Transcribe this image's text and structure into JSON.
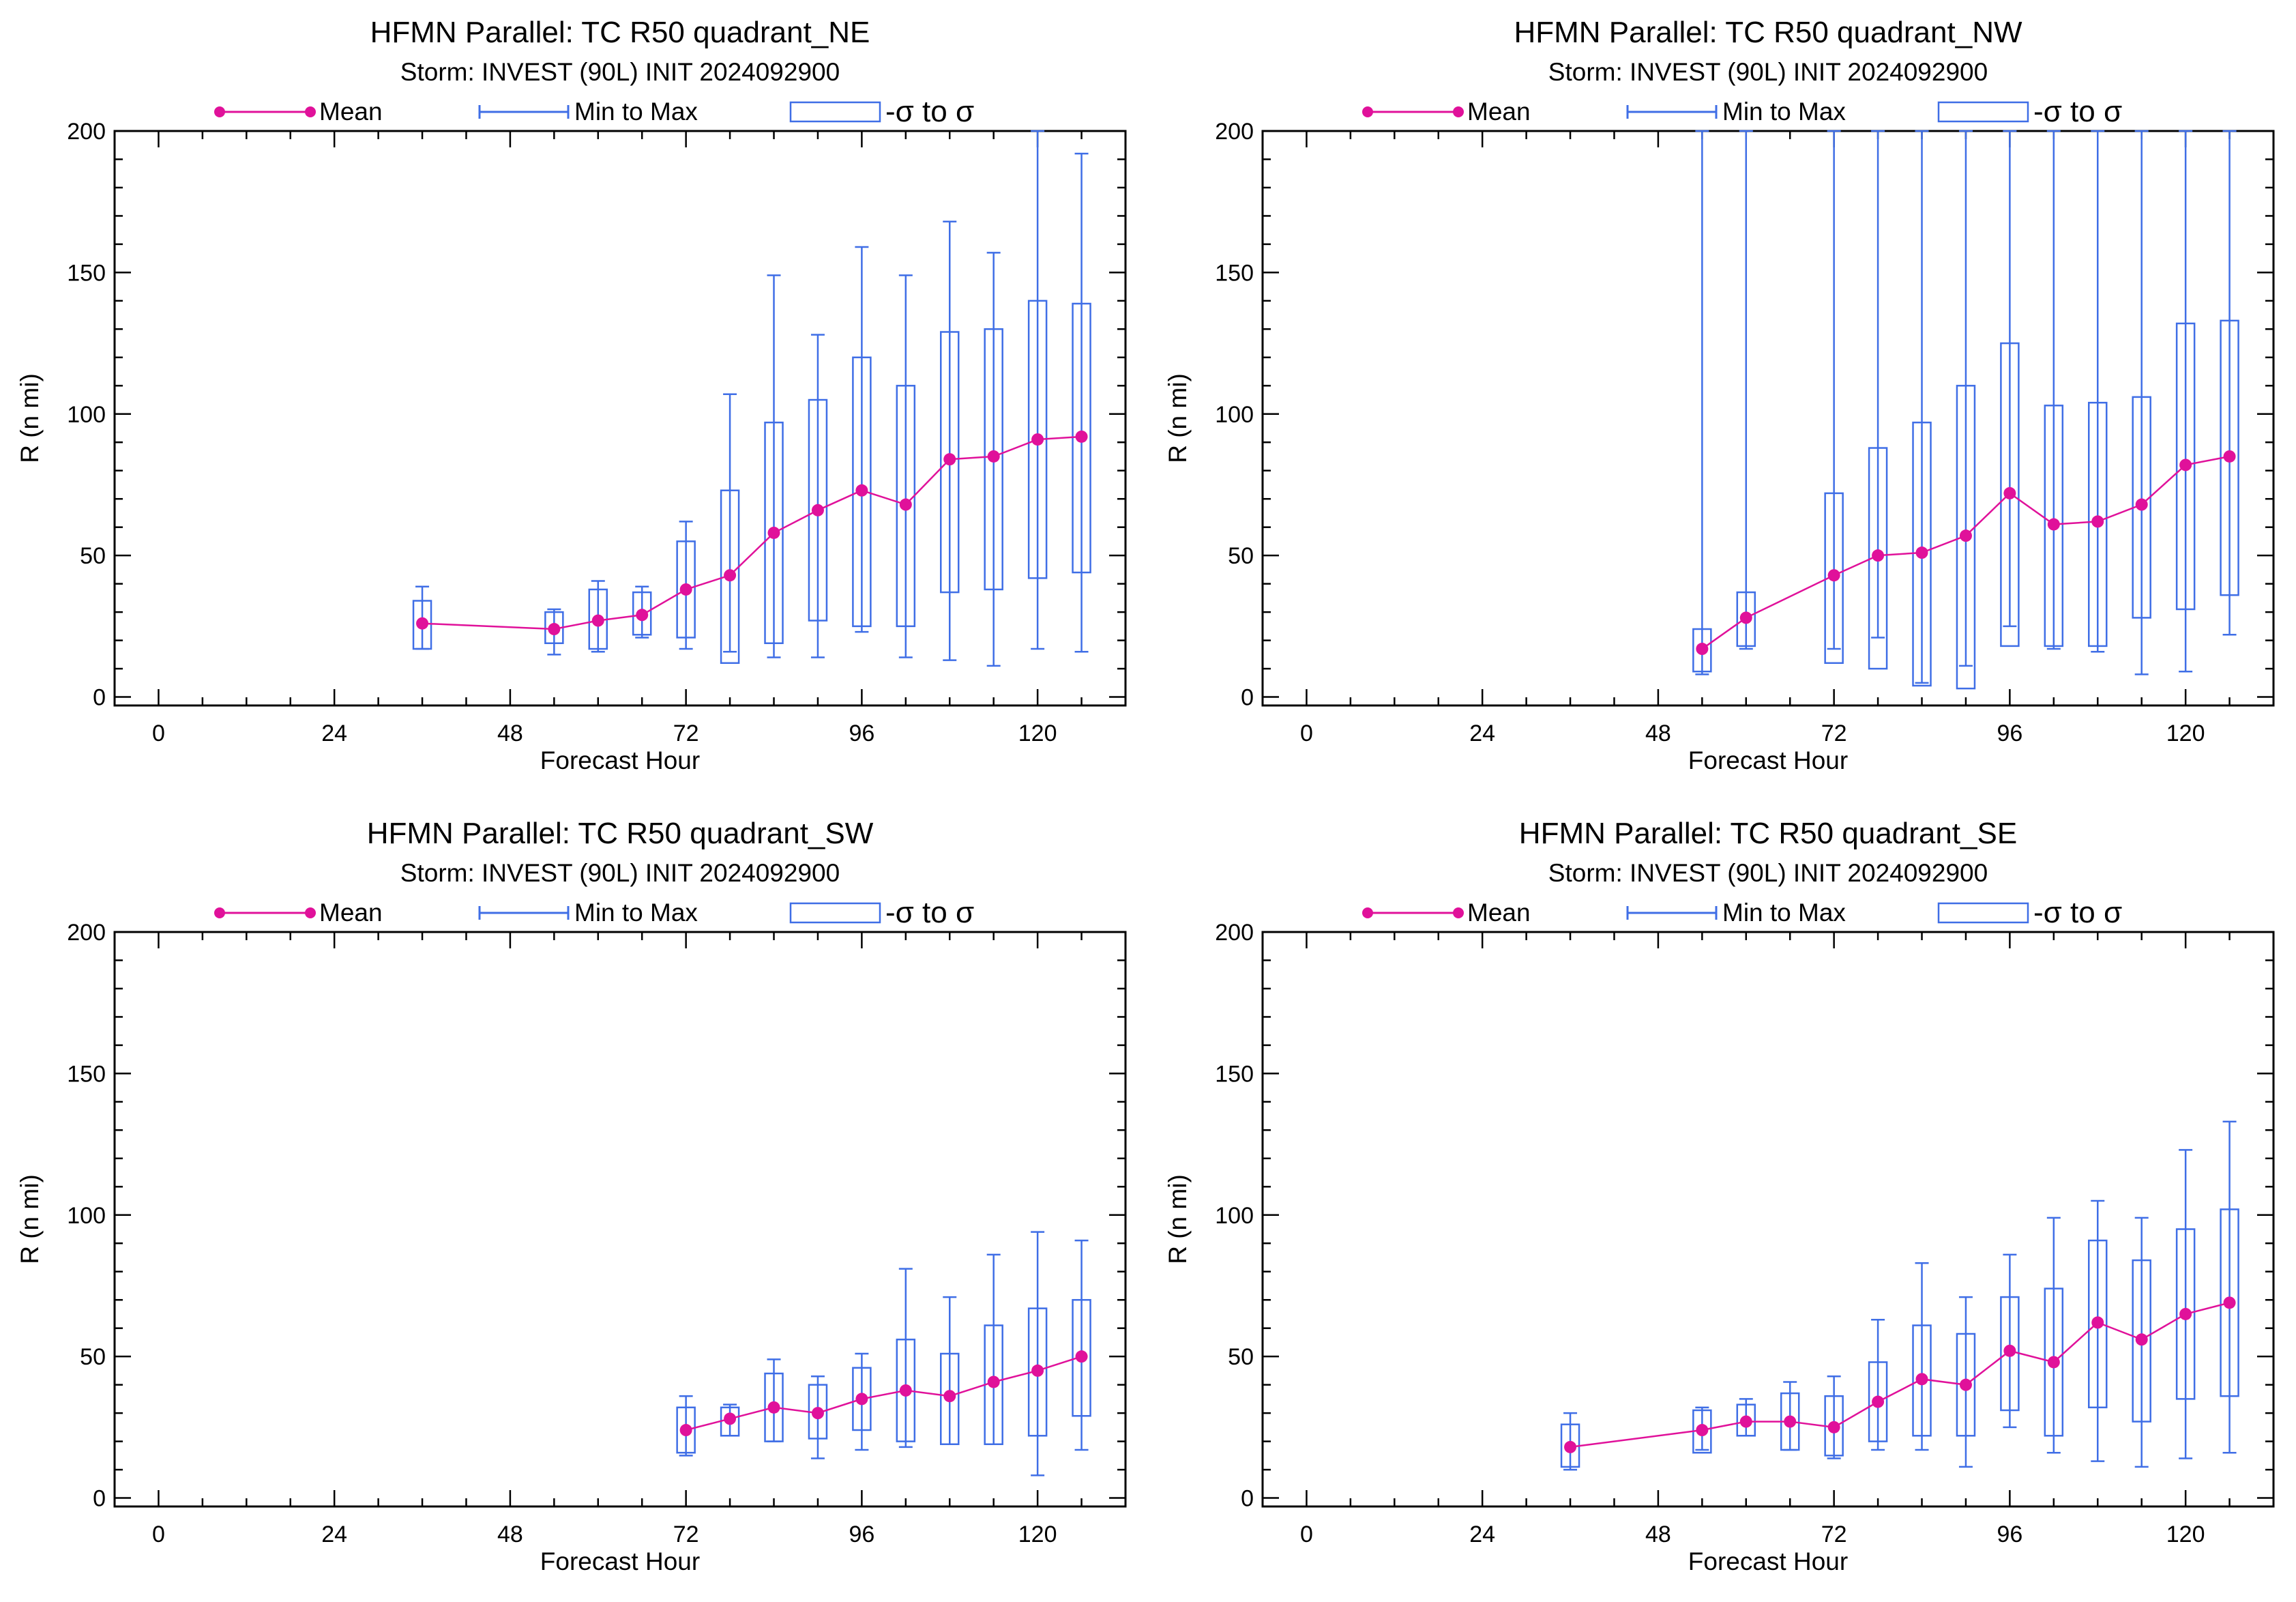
{
  "legend": {
    "mean": "Mean",
    "minmax": "Min to Max",
    "sigma": "-σ to σ"
  },
  "colors": {
    "mean": "#e0119a",
    "boxes": "#3f6ee6",
    "axes": "#000000"
  },
  "panels": [
    {
      "title": "HFMN Parallel: TC  R50 quadrant_NE",
      "subtitle": "Storm: INVEST (90L) INIT 2024092900",
      "xlabel": "Forecast Hour",
      "ylabel": "R (n mi)"
    },
    {
      "title": "HFMN Parallel: TC  R50 quadrant_NW",
      "subtitle": "Storm: INVEST (90L) INIT 2024092900",
      "xlabel": "Forecast Hour",
      "ylabel": "R (n mi)"
    },
    {
      "title": "HFMN Parallel: TC  R50 quadrant_SW",
      "subtitle": "Storm: INVEST (90L) INIT 2024092900",
      "xlabel": "Forecast Hour",
      "ylabel": "R (n mi)"
    },
    {
      "title": "HFMN Parallel: TC  R50 quadrant_SE",
      "subtitle": "Storm: INVEST (90L) INIT 2024092900",
      "xlabel": "Forecast Hour",
      "ylabel": "R (n mi)"
    }
  ],
  "chart_data": [
    {
      "type": "box",
      "title": "HFMN Parallel: TC  R50 quadrant_NE",
      "subtitle": "Storm: INVEST (90L) INIT 2024092900",
      "xlabel": "Forecast Hour",
      "ylabel": "R (n mi)",
      "xlim": [
        -6,
        132
      ],
      "ylim": [
        -3,
        200
      ],
      "xticks": [
        0,
        24,
        48,
        72,
        96,
        120
      ],
      "yticks": [
        0,
        50,
        100,
        150,
        200
      ],
      "series": [
        {
          "name": "Mean",
          "x": [
            36,
            54,
            60,
            66,
            72,
            78,
            84,
            90,
            96,
            102,
            108,
            114,
            120,
            126
          ],
          "values": [
            26,
            24,
            27,
            29,
            38,
            43,
            58,
            66,
            73,
            68,
            84,
            85,
            91,
            92
          ]
        },
        {
          "name": "Min to Max",
          "x": [
            36,
            54,
            60,
            66,
            72,
            78,
            84,
            90,
            96,
            102,
            108,
            114,
            120,
            126
          ],
          "low": [
            17,
            15,
            16,
            21,
            17,
            16,
            14,
            14,
            23,
            14,
            13,
            11,
            17,
            16
          ],
          "high": [
            39,
            31,
            41,
            39,
            62,
            107,
            149,
            128,
            159,
            149,
            168,
            157,
            200,
            192
          ]
        },
        {
          "name": "-σ to σ",
          "x": [
            36,
            54,
            60,
            66,
            72,
            78,
            84,
            90,
            96,
            102,
            108,
            114,
            120,
            126
          ],
          "low": [
            17,
            19,
            17,
            22,
            21,
            12,
            19,
            27,
            25,
            25,
            37,
            38,
            42,
            44
          ],
          "high": [
            34,
            30,
            38,
            37,
            55,
            73,
            97,
            105,
            120,
            110,
            129,
            130,
            140,
            139
          ]
        }
      ]
    },
    {
      "type": "box",
      "title": "HFMN Parallel: TC  R50 quadrant_NW",
      "subtitle": "Storm: INVEST (90L) INIT 2024092900",
      "xlabel": "Forecast Hour",
      "ylabel": "R (n mi)",
      "xlim": [
        -6,
        132
      ],
      "ylim": [
        -3,
        200
      ],
      "xticks": [
        0,
        24,
        48,
        72,
        96,
        120
      ],
      "yticks": [
        0,
        50,
        100,
        150,
        200
      ],
      "series": [
        {
          "name": "Mean",
          "x": [
            54,
            60,
            72,
            78,
            84,
            90,
            96,
            102,
            108,
            114,
            120,
            126
          ],
          "values": [
            17,
            28,
            43,
            50,
            51,
            57,
            72,
            61,
            62,
            68,
            82,
            85
          ]
        },
        {
          "name": "Min to Max",
          "x": [
            54,
            60,
            72,
            78,
            84,
            90,
            96,
            102,
            108,
            114,
            120,
            126
          ],
          "low": [
            8,
            17,
            17,
            21,
            5,
            11,
            25,
            17,
            16,
            8,
            9,
            22
          ]
        },
        {
          "name": "-σ to σ",
          "x": [
            54,
            60,
            72,
            78,
            84,
            90,
            96,
            102,
            108,
            114,
            120,
            126
          ],
          "low": [
            9,
            18,
            12,
            10,
            4,
            3,
            18,
            18,
            18,
            28,
            31,
            36
          ],
          "high": [
            24,
            37,
            72,
            88,
            97,
            110,
            125,
            103,
            104,
            106,
            132,
            133
          ]
        }
      ]
    },
    {
      "type": "box",
      "title": "HFMN Parallel: TC  R50 quadrant_SW",
      "subtitle": "Storm: INVEST (90L) INIT 2024092900",
      "xlabel": "Forecast Hour",
      "ylabel": "R (n mi)",
      "xlim": [
        -6,
        132
      ],
      "ylim": [
        -3,
        200
      ],
      "xticks": [
        0,
        24,
        48,
        72,
        96,
        120
      ],
      "yticks": [
        0,
        50,
        100,
        150,
        200
      ],
      "series": [
        {
          "name": "Mean",
          "x": [
            72,
            78,
            84,
            90,
            96,
            102,
            108,
            114,
            120,
            126
          ],
          "values": [
            24,
            28,
            32,
            30,
            35,
            38,
            36,
            41,
            45,
            50
          ]
        },
        {
          "name": "Min to Max",
          "x": [
            72,
            78,
            84,
            90,
            96,
            102,
            108,
            114,
            120,
            126
          ],
          "low": [
            15,
            22,
            20,
            14,
            17,
            18,
            19,
            19,
            8,
            17
          ],
          "high": [
            36,
            33,
            49,
            43,
            51,
            81,
            71,
            86,
            94,
            91
          ]
        },
        {
          "name": "-σ to σ",
          "x": [
            72,
            78,
            84,
            90,
            96,
            102,
            108,
            114,
            120,
            126
          ],
          "low": [
            16,
            22,
            20,
            21,
            24,
            20,
            19,
            19,
            22,
            29
          ],
          "high": [
            32,
            32,
            44,
            40,
            46,
            56,
            51,
            61,
            67,
            70
          ]
        }
      ]
    },
    {
      "type": "box",
      "title": "HFMN Parallel: TC  R50 quadrant_SE",
      "subtitle": "Storm: INVEST (90L) INIT 2024092900",
      "xlabel": "Forecast Hour",
      "ylabel": "R (n mi)",
      "xlim": [
        -6,
        132
      ],
      "ylim": [
        -3,
        200
      ],
      "xticks": [
        0,
        24,
        48,
        72,
        96,
        120
      ],
      "yticks": [
        0,
        50,
        100,
        150,
        200
      ],
      "series": [
        {
          "name": "Mean",
          "x": [
            36,
            54,
            60,
            66,
            72,
            78,
            84,
            90,
            96,
            102,
            108,
            114,
            120,
            126
          ],
          "values": [
            18,
            24,
            27,
            27,
            25,
            34,
            42,
            40,
            52,
            48,
            62,
            56,
            65,
            69
          ]
        },
        {
          "name": "Min to Max",
          "x": [
            36,
            54,
            60,
            66,
            72,
            78,
            84,
            90,
            96,
            102,
            108,
            114,
            120,
            126
          ],
          "low": [
            10,
            17,
            22,
            17,
            14,
            17,
            17,
            11,
            25,
            16,
            13,
            11,
            14,
            16
          ],
          "high": [
            30,
            32,
            35,
            41,
            43,
            63,
            83,
            71,
            86,
            99,
            105,
            99,
            123,
            133
          ]
        },
        {
          "name": "-σ to σ",
          "x": [
            36,
            54,
            60,
            66,
            72,
            78,
            84,
            90,
            96,
            102,
            108,
            114,
            120,
            126
          ],
          "low": [
            11,
            16,
            22,
            17,
            15,
            20,
            22,
            22,
            31,
            22,
            32,
            27,
            35,
            36
          ],
          "high": [
            26,
            31,
            33,
            37,
            36,
            48,
            61,
            58,
            71,
            74,
            91,
            84,
            95,
            102
          ]
        }
      ]
    }
  ]
}
